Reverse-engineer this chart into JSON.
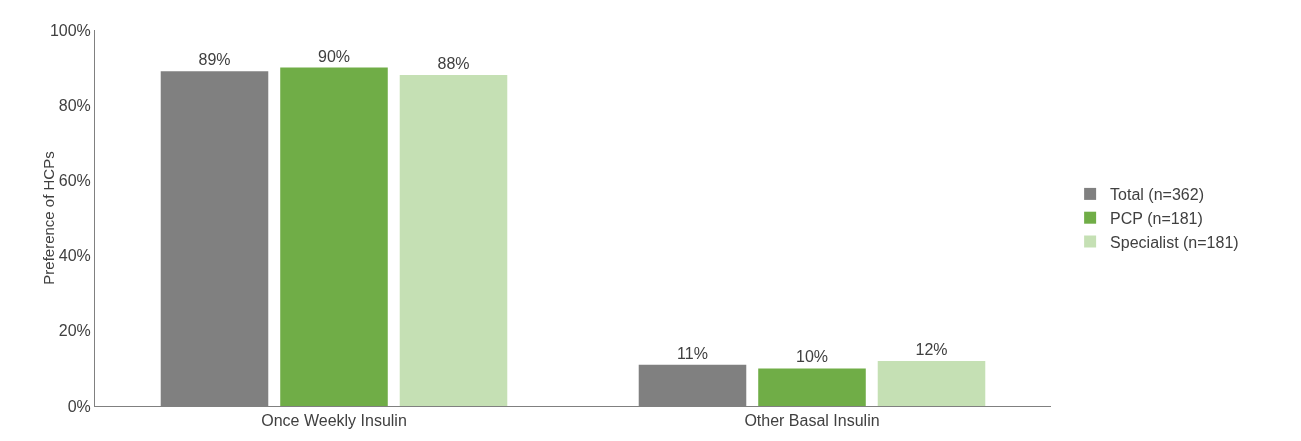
{
  "chart_data": {
    "type": "bar",
    "ylabel": "Preference of HCPs",
    "categories": [
      "Once Weekly Insulin",
      "Other Basal Insulin"
    ],
    "series": [
      {
        "name": "Total (n=362)",
        "color": "#808080",
        "values": [
          89,
          11
        ],
        "value_labels": [
          "89%",
          "11%"
        ]
      },
      {
        "name": "PCP (n=181)",
        "color": "#70ad47",
        "values": [
          90,
          10
        ],
        "value_labels": [
          "90%",
          "10%"
        ]
      },
      {
        "name": "Specialist (n=181)",
        "color": "#c5e0b4",
        "values": [
          88,
          12
        ],
        "value_labels": [
          "88%",
          "12%"
        ]
      }
    ],
    "ylim": [
      0,
      100
    ],
    "yticks": [
      {
        "value": 0,
        "label": "0%"
      },
      {
        "value": 20,
        "label": "20%"
      },
      {
        "value": 40,
        "label": "40%"
      },
      {
        "value": 60,
        "label": "60%"
      },
      {
        "value": 80,
        "label": "80%"
      },
      {
        "value": 100,
        "label": "100%"
      }
    ],
    "grid": false,
    "legend": "right"
  }
}
